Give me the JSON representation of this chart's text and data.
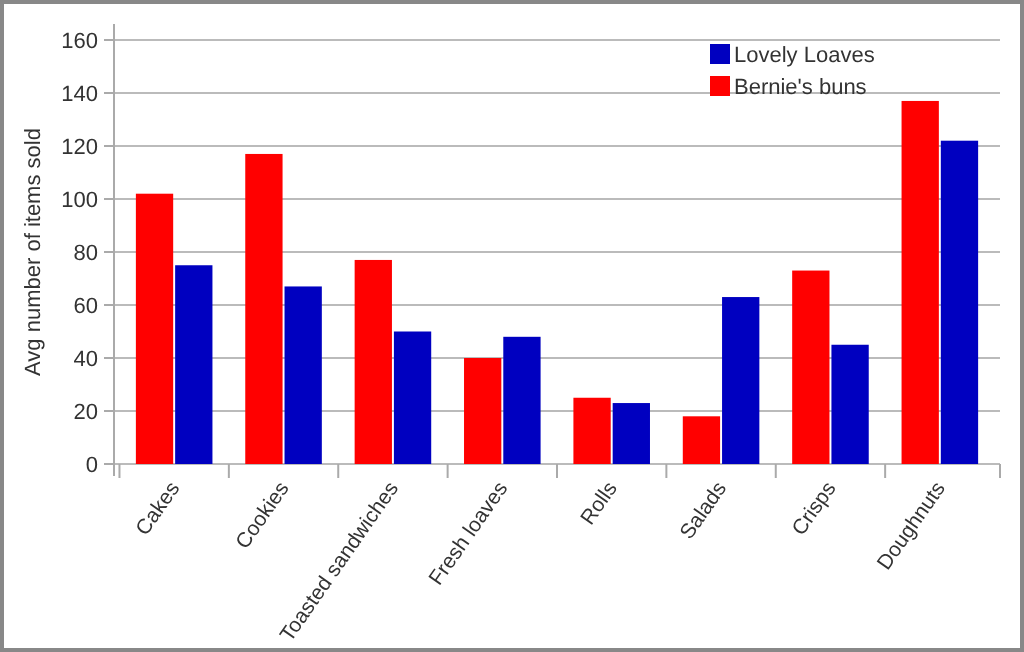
{
  "chart_data": {
    "type": "bar",
    "ylabel": "Avg number of items sold",
    "categories": [
      "Cakes",
      "Cookies",
      "Toasted sandwiches",
      "Fresh loaves",
      "Rolls",
      "Salads",
      "Crisps",
      "Doughnuts"
    ],
    "series": [
      {
        "name": "Bernie's buns",
        "color": "#ff0000",
        "values": [
          102,
          117,
          77,
          40,
          25,
          18,
          73,
          137
        ]
      },
      {
        "name": "Lovely Loaves",
        "color": "#0000c0",
        "values": [
          75,
          67,
          50,
          48,
          23,
          63,
          45,
          122
        ]
      }
    ],
    "ylim": [
      0,
      160
    ],
    "yticks": [
      0,
      20,
      40,
      60,
      80,
      100,
      120,
      140,
      160
    ],
    "grid": "y",
    "legend": "top right"
  }
}
